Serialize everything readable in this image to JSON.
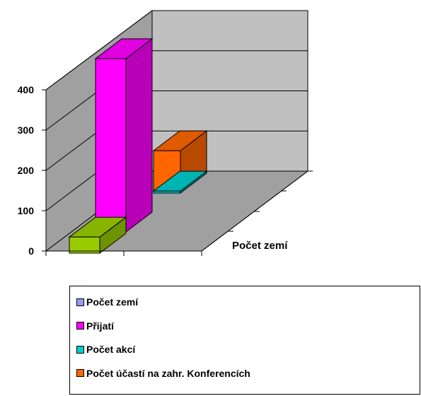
{
  "chart_data": {
    "type": "bar",
    "style": "3d-column",
    "title": "",
    "xlabel": "",
    "ylabel": "",
    "depth_axis_label": "Počet zemí",
    "ylim": [
      0,
      400
    ],
    "y_ticks": [
      "0",
      "100",
      "200",
      "300",
      "400"
    ],
    "grid": true,
    "legend_position": "bottom",
    "series": [
      {
        "name": "Počet zemí",
        "color": "#9999ff",
        "value": null
      },
      {
        "name": "Přijatí",
        "color": "#ff00ff",
        "value": 430
      },
      {
        "name": "Počet akcí",
        "color": "#00cccc",
        "value": 5
      },
      {
        "name": "Počet účastí na zahr. Konferencích",
        "color": "#ff6600",
        "value": 98
      },
      {
        "name": "",
        "color": "#99cc00",
        "value": 40
      }
    ]
  }
}
